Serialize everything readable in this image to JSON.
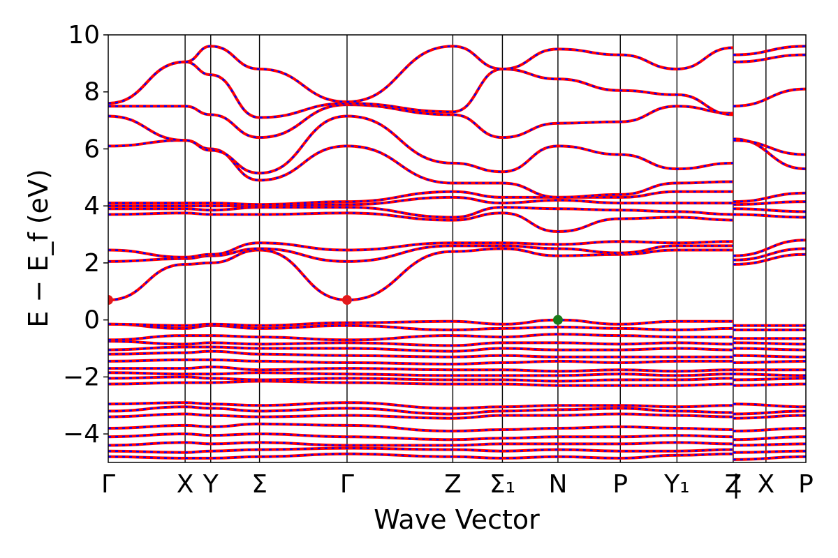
{
  "chart_data": {
    "type": "line",
    "title": "",
    "xlabel": "Wave Vector",
    "ylabel": "E − E_f (eV)",
    "ylim": [
      -5,
      10
    ],
    "yticks": [
      -4,
      -2,
      0,
      2,
      4,
      6,
      8,
      10
    ],
    "grid": false,
    "legend": "none",
    "colors": {
      "band_solid": "#ff0000",
      "band_dashed": "#0000ff",
      "vbm": "#1a7a1a",
      "cbm": "#e31a1c",
      "axis": "#000000"
    },
    "kpoints": [
      {
        "label": "Γ",
        "x": 0.0
      },
      {
        "label": "X",
        "x": 0.1102
      },
      {
        "label": "Y",
        "x": 0.1469
      },
      {
        "label": "Σ",
        "x": 0.2168
      },
      {
        "label": "Γ",
        "x": 0.3423
      },
      {
        "label": "Z",
        "x": 0.4939
      },
      {
        "label": "Σ₁",
        "x": 0.565
      },
      {
        "label": "N",
        "x": 0.6446
      },
      {
        "label": "P",
        "x": 0.734
      },
      {
        "label": "Y₁",
        "x": 0.8152
      },
      {
        "label": "Z",
        "x": 0.8958
      },
      {
        "label": "|",
        "x": 0.9
      },
      {
        "label": "X",
        "x": 0.9428
      },
      {
        "label": "P",
        "x": 1.0
      }
    ],
    "band_x": [
      0,
      0.1102,
      0.1469,
      0.2168,
      0.3423,
      0.4939,
      0.565,
      0.6446,
      0.734,
      0.8152,
      0.8958,
      0.8958,
      1.0
    ],
    "series": [
      {
        "values": [
          -4.8,
          -4.85,
          -4.85,
          -4.8,
          -4.7,
          -4.8,
          -4.85,
          -4.8,
          -4.85,
          -4.75,
          -4.7,
          -4.9,
          -4.8
        ]
      },
      {
        "values": [
          -4.6,
          -4.65,
          -4.6,
          -4.55,
          -4.5,
          -4.55,
          -4.6,
          -4.55,
          -4.6,
          -4.6,
          -4.55,
          -4.65,
          -4.6
        ]
      },
      {
        "values": [
          -4.4,
          -4.3,
          -4.35,
          -4.3,
          -4.4,
          -4.4,
          -4.35,
          -4.35,
          -4.35,
          -4.3,
          -4.35,
          -4.4,
          -4.35
        ]
      },
      {
        "values": [
          -4.1,
          -4.0,
          -4.05,
          -4.0,
          -4.1,
          -4.2,
          -4.15,
          -4.1,
          -4.1,
          -4.05,
          -4.1,
          -4.2,
          -4.1
        ]
      },
      {
        "values": [
          -3.8,
          -3.7,
          -3.75,
          -3.65,
          -3.7,
          -3.9,
          -3.85,
          -3.8,
          -3.75,
          -3.8,
          -3.85,
          -3.9,
          -3.8
        ]
      },
      {
        "values": [
          -3.4,
          -3.3,
          -3.35,
          -3.4,
          -3.35,
          -3.45,
          -3.35,
          -3.35,
          -3.3,
          -3.35,
          -3.4,
          -3.45,
          -3.35
        ]
      },
      {
        "values": [
          -3.2,
          -3.05,
          -3.1,
          -3.2,
          -3.1,
          -3.3,
          -3.2,
          -3.15,
          -3.1,
          -3.2,
          -3.25,
          -3.3,
          -3.2
        ]
      },
      {
        "values": [
          -2.95,
          -2.9,
          -2.95,
          -3.0,
          -2.9,
          -3.1,
          -3.05,
          -3.0,
          -3.0,
          -3.05,
          -3.0,
          -2.95,
          -3.05
        ]
      },
      {
        "values": [
          -2.25,
          -2.2,
          -2.2,
          -2.15,
          -2.2,
          -2.25,
          -2.25,
          -2.3,
          -2.3,
          -2.3,
          -2.25,
          -2.3,
          -2.25
        ]
      },
      {
        "values": [
          -2.05,
          -2.0,
          -2.05,
          -2.1,
          -2.05,
          -2.1,
          -2.1,
          -2.15,
          -2.1,
          -2.1,
          -2.05,
          -2.1,
          -2.05
        ]
      },
      {
        "values": [
          -1.85,
          -1.9,
          -1.9,
          -1.85,
          -1.9,
          -1.95,
          -1.95,
          -1.95,
          -1.9,
          -1.95,
          -1.9,
          -1.9,
          -1.95
        ]
      },
      {
        "values": [
          -1.7,
          -1.7,
          -1.65,
          -1.75,
          -1.7,
          -1.75,
          -1.75,
          -1.8,
          -1.75,
          -1.8,
          -1.75,
          -1.75,
          -1.75
        ]
      },
      {
        "values": [
          -1.45,
          -1.4,
          -1.4,
          -1.45,
          -1.5,
          -1.55,
          -1.5,
          -1.45,
          -1.5,
          -1.45,
          -1.45,
          -1.5,
          -1.45
        ]
      },
      {
        "values": [
          -1.2,
          -1.15,
          -1.1,
          -1.2,
          -1.25,
          -1.3,
          -1.25,
          -1.3,
          -1.3,
          -1.3,
          -1.3,
          -1.25,
          -1.3
        ]
      },
      {
        "values": [
          -1.05,
          -0.95,
          -0.95,
          -1.0,
          -1.0,
          -1.1,
          -1.0,
          -1.05,
          -1.05,
          -1.0,
          -1.05,
          -1.0,
          -1.05
        ]
      },
      {
        "values": [
          -0.75,
          -0.85,
          -0.8,
          -0.85,
          -0.8,
          -0.9,
          -0.8,
          -0.8,
          -0.85,
          -0.8,
          -0.85,
          -0.8,
          -0.85
        ]
      },
      {
        "values": [
          -0.7,
          -0.55,
          -0.55,
          -0.6,
          -0.7,
          -0.55,
          -0.6,
          -0.5,
          -0.55,
          -0.6,
          -0.6,
          -0.65,
          -0.65
        ]
      },
      {
        "values": [
          -0.15,
          -0.3,
          -0.2,
          -0.3,
          -0.2,
          -0.35,
          -0.3,
          -0.25,
          -0.3,
          -0.35,
          -0.3,
          -0.35,
          -0.35
        ]
      },
      {
        "values": [
          -0.15,
          -0.2,
          -0.15,
          -0.2,
          -0.1,
          -0.05,
          -0.15,
          0.0,
          -0.15,
          -0.05,
          -0.05,
          -0.2,
          -0.2
        ]
      },
      {
        "values": [
          0.7,
          1.95,
          2.0,
          2.45,
          0.7,
          2.4,
          2.5,
          2.25,
          2.3,
          2.45,
          2.45,
          1.95,
          2.3
        ]
      },
      {
        "values": [
          2.05,
          2.15,
          2.25,
          2.5,
          2.05,
          2.6,
          2.6,
          2.5,
          2.35,
          2.6,
          2.6,
          2.1,
          2.5
        ]
      },
      {
        "values": [
          2.45,
          2.2,
          2.3,
          2.7,
          2.45,
          2.7,
          2.7,
          2.65,
          2.75,
          2.7,
          2.75,
          2.25,
          2.8
        ]
      },
      {
        "values": [
          3.7,
          3.75,
          3.7,
          3.7,
          3.75,
          3.5,
          3.75,
          3.1,
          3.55,
          3.6,
          3.5,
          3.7,
          3.6
        ]
      },
      {
        "values": [
          3.9,
          3.9,
          3.85,
          3.95,
          3.95,
          3.6,
          3.95,
          3.9,
          3.85,
          3.8,
          3.7,
          3.9,
          3.8
        ]
      },
      {
        "values": [
          4.0,
          4.0,
          4.0,
          4.0,
          4.05,
          4.3,
          4.1,
          4.2,
          4.1,
          4.1,
          4.1,
          4.05,
          4.15
        ]
      },
      {
        "values": [
          4.1,
          4.1,
          4.1,
          4.05,
          4.15,
          4.5,
          4.3,
          4.3,
          4.3,
          4.5,
          4.5,
          4.15,
          4.45
        ]
      },
      {
        "values": [
          6.1,
          6.3,
          6.0,
          4.9,
          6.1,
          4.8,
          4.8,
          4.3,
          4.4,
          4.8,
          4.85,
          6.35,
          5.3
        ]
      },
      {
        "values": [
          7.15,
          6.3,
          5.95,
          5.15,
          7.15,
          5.5,
          5.2,
          6.1,
          5.8,
          5.3,
          5.5,
          6.3,
          5.8
        ]
      },
      {
        "values": [
          7.5,
          7.5,
          7.2,
          6.4,
          7.55,
          7.2,
          6.4,
          6.9,
          6.95,
          7.5,
          7.25,
          7.5,
          8.1
        ]
      },
      {
        "values": [
          7.6,
          9.05,
          8.6,
          7.1,
          7.6,
          7.3,
          8.8,
          8.45,
          8.05,
          7.9,
          7.2,
          9.05,
          9.3
        ]
      },
      {
        "values": [
          7.6,
          9.05,
          9.6,
          8.8,
          7.65,
          9.6,
          8.8,
          9.5,
          9.3,
          8.8,
          9.55,
          9.3,
          9.6
        ]
      }
    ],
    "markers": [
      {
        "name": "vbm",
        "x": 0.6446,
        "y": 0.0
      },
      {
        "name": "cbm",
        "x": 0.0,
        "y": 0.7
      },
      {
        "name": "cbm",
        "x": 0.3423,
        "y": 0.7
      }
    ]
  }
}
